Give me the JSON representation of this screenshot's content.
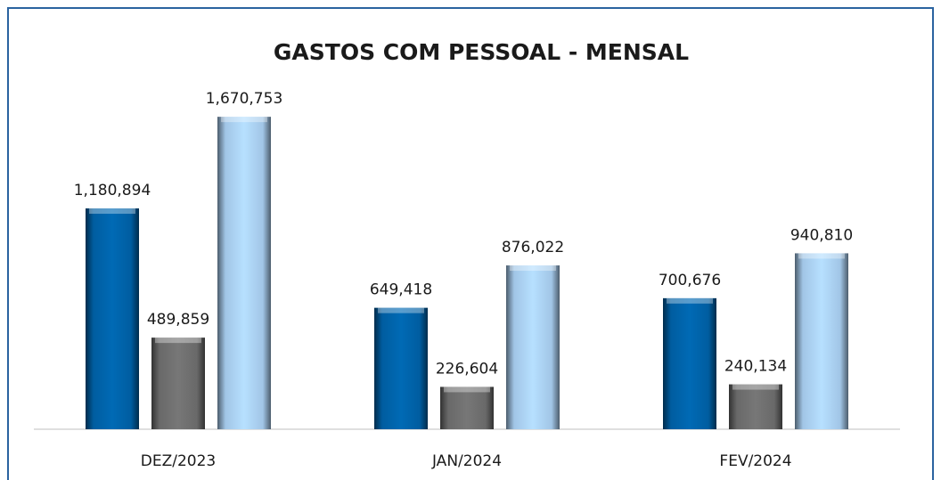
{
  "chart_data": {
    "type": "bar",
    "title": "GASTOS COM PESSOAL - MENSAL",
    "categories": [
      "DEZ/2023",
      "JAN/2024",
      "FEV/2024"
    ],
    "series": [
      {
        "color": "#0062a8",
        "values": [
          1180894,
          649418,
          700676
        ],
        "value_labels": [
          "1,180,894",
          "649,418",
          "700,676"
        ]
      },
      {
        "color": "#6e6e6e",
        "values": [
          489859,
          226604,
          240134
        ],
        "value_labels": [
          "489,859",
          "226,604",
          "240,134"
        ]
      },
      {
        "color": "#a9cff2",
        "values": [
          1670753,
          876022,
          940810
        ],
        "value_labels": [
          "1,670,753",
          "876,022",
          "940,810"
        ]
      }
    ],
    "ylim": [
      0,
      1800000
    ]
  }
}
